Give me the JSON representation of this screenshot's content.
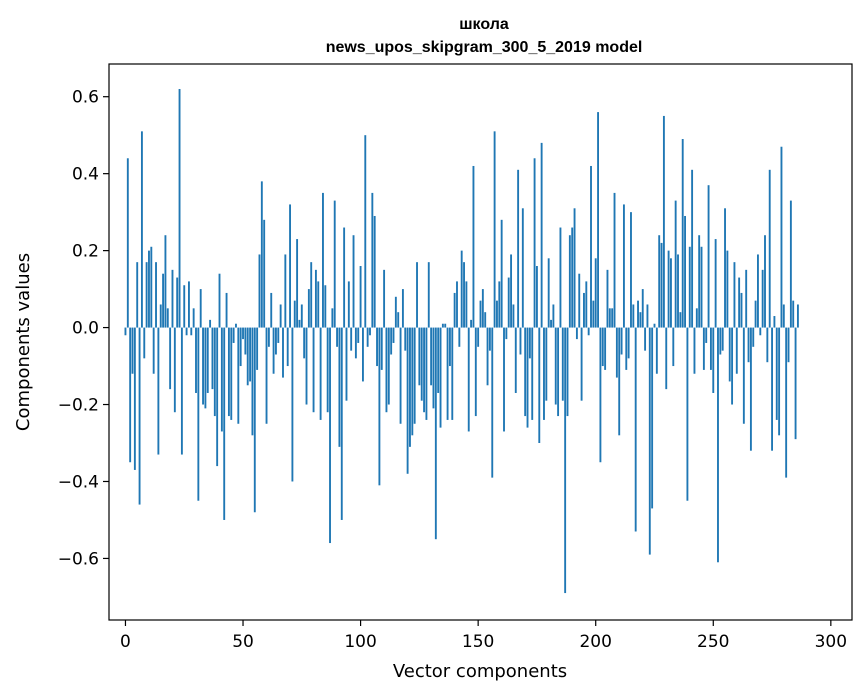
{
  "chart_data": {
    "type": "bar",
    "title": "школа",
    "subtitle": "news_upos_skipgram_300_5_2019 model",
    "xlabel": "Vector components",
    "ylabel": "Components values",
    "xlim": [
      -7,
      309
    ],
    "ylim": [
      -0.76,
      0.685
    ],
    "xticks": [
      0,
      50,
      100,
      150,
      200,
      250,
      300
    ],
    "xtick_labels": [
      "0",
      "50",
      "100",
      "150",
      "200",
      "250",
      "300"
    ],
    "yticks": [
      -0.6,
      -0.4,
      -0.2,
      0.0,
      0.2,
      0.4,
      0.6
    ],
    "ytick_labels": [
      "−0.6",
      "−0.4",
      "−0.2",
      "0.0",
      "0.2",
      "0.4",
      "0.6"
    ],
    "grid": false,
    "bar_color": "#1f77b4",
    "values": [
      -0.02,
      0.44,
      -0.35,
      -0.12,
      -0.37,
      0.17,
      -0.46,
      0.51,
      -0.08,
      0.17,
      0.2,
      0.21,
      -0.12,
      0.17,
      -0.33,
      0.06,
      0.14,
      0.24,
      0.05,
      -0.16,
      0.15,
      -0.22,
      0.13,
      0.62,
      -0.33,
      0.11,
      -0.02,
      0.12,
      -0.02,
      0.05,
      -0.17,
      -0.45,
      0.1,
      -0.2,
      -0.21,
      -0.17,
      0.02,
      -0.16,
      -0.23,
      -0.36,
      0.14,
      -0.27,
      -0.5,
      0.09,
      -0.23,
      -0.24,
      -0.04,
      0.01,
      -0.25,
      -0.1,
      -0.03,
      -0.07,
      -0.15,
      -0.14,
      -0.28,
      -0.48,
      -0.11,
      0.19,
      0.38,
      0.28,
      -0.25,
      -0.05,
      0.09,
      -0.12,
      -0.07,
      -0.04,
      0.06,
      -0.13,
      0.19,
      -0.1,
      0.32,
      -0.4,
      0.07,
      0.23,
      0.02,
      0.06,
      -0.08,
      -0.2,
      0.1,
      0.17,
      -0.22,
      0.15,
      0.12,
      -0.24,
      0.35,
      0.11,
      -0.22,
      -0.56,
      0.05,
      0.33,
      -0.05,
      -0.31,
      -0.5,
      0.26,
      -0.19,
      0.12,
      -0.06,
      0.24,
      -0.08,
      -0.04,
      0.16,
      -0.14,
      0.5,
      -0.05,
      -0.02,
      0.35,
      0.29,
      -0.1,
      -0.41,
      -0.11,
      0.15,
      -0.22,
      -0.2,
      -0.07,
      -0.04,
      0.08,
      0.04,
      -0.25,
      0.1,
      -0.06,
      -0.38,
      -0.31,
      -0.28,
      -0.25,
      0.17,
      -0.15,
      -0.19,
      -0.22,
      -0.24,
      0.17,
      -0.15,
      -0.21,
      -0.55,
      -0.17,
      -0.26,
      0.01,
      0.01,
      -0.24,
      -0.1,
      -0.24,
      0.09,
      0.12,
      -0.05,
      0.2,
      0.17,
      0.12,
      -0.27,
      0.02,
      0.42,
      -0.23,
      -0.05,
      0.07,
      0.1,
      0.04,
      -0.15,
      -0.06,
      -0.39,
      0.51,
      0.07,
      0.12,
      0.28,
      -0.27,
      -0.03,
      0.13,
      0.19,
      0.06,
      -0.17,
      0.41,
      -0.07,
      0.31,
      -0.23,
      -0.26,
      -0.08,
      -0.24,
      0.44,
      0.16,
      -0.3,
      0.48,
      -0.24,
      -0.19,
      0.18,
      0.02,
      0.06,
      -0.2,
      -0.23,
      0.26,
      -0.19,
      -0.69,
      -0.23,
      0.24,
      0.26,
      0.31,
      -0.03,
      0.14,
      -0.19,
      0.09,
      0.12,
      -0.02,
      0.42,
      0.07,
      0.18,
      0.56,
      -0.35,
      -0.1,
      -0.11,
      0.15,
      0.05,
      0.05,
      0.35,
      -0.13,
      -0.28,
      -0.07,
      0.32,
      -0.11,
      -0.08,
      0.3,
      0.06,
      -0.53,
      0.07,
      0.04,
      0.1,
      -0.06,
      0.06,
      -0.59,
      -0.47,
      0.01,
      -0.12,
      0.24,
      0.22,
      0.55,
      -0.16,
      0.2,
      0.18,
      -0.1,
      0.33,
      0.19,
      0.04,
      0.49,
      0.29,
      -0.45,
      0.21,
      0.41,
      -0.12,
      0.05,
      0.24,
      0.21,
      -0.11,
      -0.04,
      0.37,
      -0.11,
      -0.17,
      0.23,
      -0.61,
      -0.07,
      -0.06,
      0.31,
      0.2,
      -0.14,
      -0.2,
      0.17,
      -0.12,
      0.13,
      0.09,
      -0.25,
      0.15,
      -0.09,
      -0.32,
      -0.05,
      0.07,
      0.19,
      -0.02,
      0.15,
      0.24,
      -0.09,
      0.41,
      -0.32,
      0.03,
      -0.24,
      -0.28,
      0.47,
      0.06,
      -0.39,
      -0.09,
      0.33,
      0.07,
      -0.29,
      0.06
    ]
  }
}
